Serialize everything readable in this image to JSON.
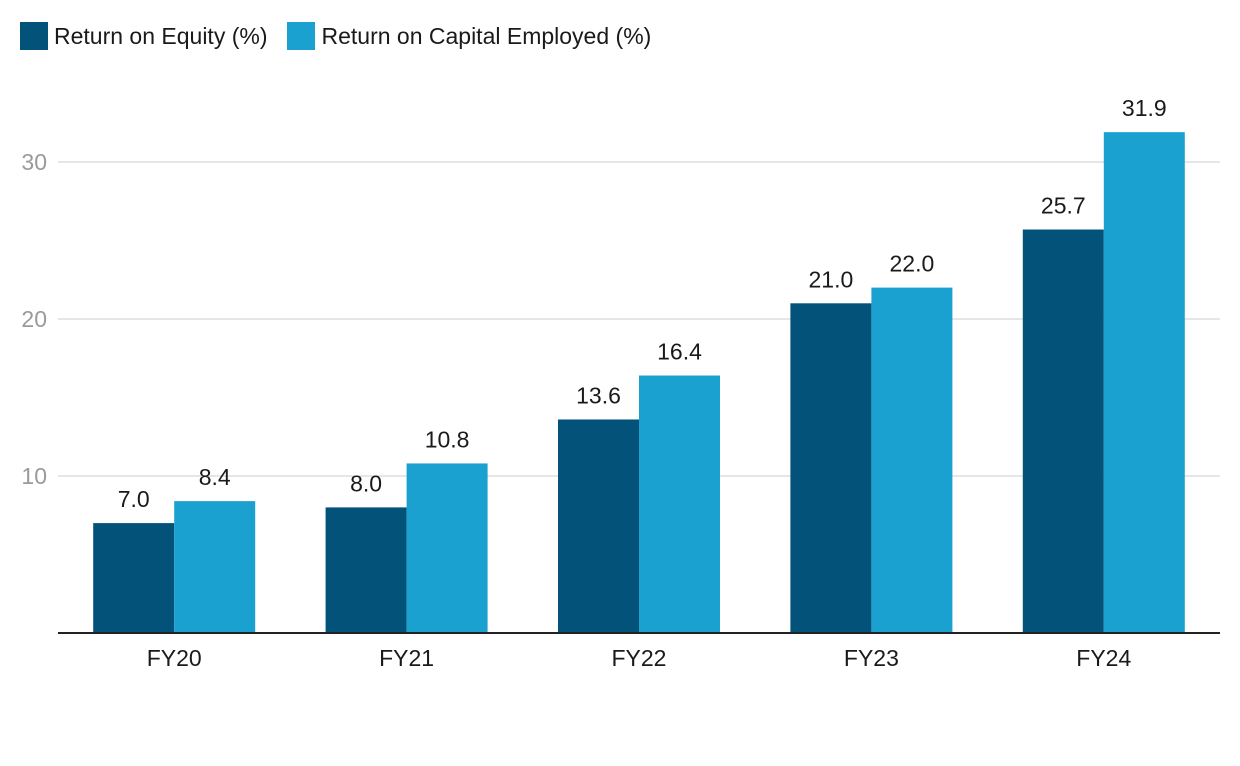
{
  "chart_data": {
    "type": "bar",
    "categories": [
      "FY20",
      "FY21",
      "FY22",
      "FY23",
      "FY24"
    ],
    "series": [
      {
        "name": "Return on Equity (%)",
        "values": [
          7.0,
          8.0,
          13.6,
          21.0,
          25.7
        ],
        "color": "#02527a"
      },
      {
        "name": "Return on Capital Employed (%)",
        "values": [
          8.4,
          10.8,
          16.4,
          22.0,
          31.9
        ],
        "color": "#1ba1cf"
      }
    ],
    "yticks": [
      10,
      20,
      30
    ],
    "ylim": [
      0,
      35
    ],
    "grid": true,
    "legend_position": "top-left",
    "title": "",
    "xlabel": "",
    "ylabel": ""
  }
}
